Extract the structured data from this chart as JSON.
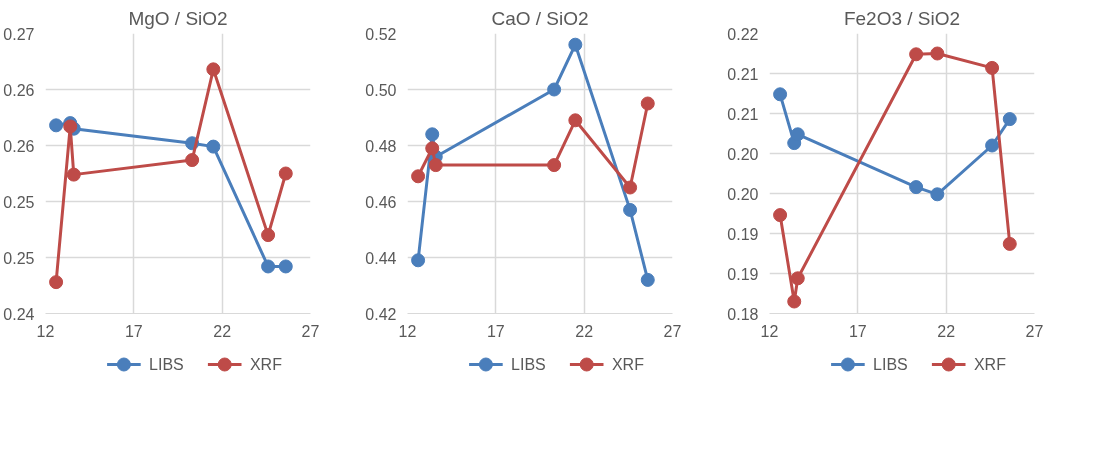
{
  "chart_data": [
    {
      "type": "line",
      "title": "MgO / SiO2",
      "x": [
        12.6,
        13.4,
        13.6,
        20.3,
        21.5,
        24.6,
        25.6
      ],
      "series": [
        {
          "name": "LIBS",
          "color": "#4a7ebb",
          "values": [
            0.2568,
            0.257,
            0.2565,
            0.2552,
            0.2549,
            0.2442,
            0.2442
          ]
        },
        {
          "name": "XRF",
          "color": "#be4b48",
          "values": [
            0.2428,
            0.2567,
            0.2524,
            0.2537,
            0.2618,
            0.247,
            0.2525
          ]
        }
      ],
      "xlim": [
        12,
        27
      ],
      "xticks": [
        12,
        17,
        22,
        27
      ],
      "ylim": [
        0.24,
        0.265
      ],
      "yticks": [
        {
          "value": 0.24,
          "label": "0.24"
        },
        {
          "value": 0.245,
          "label": "0.25"
        },
        {
          "value": 0.25,
          "label": "0.25"
        },
        {
          "value": 0.255,
          "label": "0.26"
        },
        {
          "value": 0.26,
          "label": "0.26"
        },
        {
          "value": 0.265,
          "label": "0.27"
        }
      ],
      "grid": true,
      "legend": "bottom",
      "marker": "circle",
      "line_style": "solid"
    },
    {
      "type": "line",
      "title": "CaO / SiO2",
      "x": [
        12.6,
        13.4,
        13.6,
        20.3,
        21.5,
        24.6,
        25.6
      ],
      "series": [
        {
          "name": "LIBS",
          "color": "#4a7ebb",
          "values": [
            0.439,
            0.484,
            0.476,
            0.5,
            0.516,
            0.457,
            0.432
          ]
        },
        {
          "name": "XRF",
          "color": "#be4b48",
          "values": [
            0.469,
            0.479,
            0.473,
            0.473,
            0.489,
            0.465,
            0.495
          ]
        }
      ],
      "xlim": [
        12,
        27
      ],
      "xticks": [
        12,
        17,
        22,
        27
      ],
      "ylim": [
        0.42,
        0.52
      ],
      "yticks": [
        {
          "value": 0.42,
          "label": "0.42"
        },
        {
          "value": 0.44,
          "label": "0.44"
        },
        {
          "value": 0.46,
          "label": "0.46"
        },
        {
          "value": 0.48,
          "label": "0.48"
        },
        {
          "value": 0.5,
          "label": "0.50"
        },
        {
          "value": 0.52,
          "label": "0.52"
        }
      ],
      "grid": true,
      "legend": "bottom",
      "marker": "circle",
      "line_style": "solid"
    },
    {
      "type": "line",
      "title": "Fe2O3 / SiO2",
      "x": [
        12.6,
        13.4,
        13.6,
        20.3,
        21.5,
        24.6,
        25.6
      ],
      "series": [
        {
          "name": "LIBS",
          "color": "#4a7ebb",
          "values": [
            0.2074,
            0.2013,
            0.2024,
            0.1958,
            0.1949,
            0.201,
            0.2043
          ]
        },
        {
          "name": "XRF",
          "color": "#be4b48",
          "values": [
            0.1923,
            0.1815,
            0.1844,
            0.2124,
            0.2125,
            0.2107,
            0.1887
          ]
        }
      ],
      "xlim": [
        12,
        27
      ],
      "xticks": [
        12,
        17,
        22,
        27
      ],
      "ylim": [
        0.18,
        0.215
      ],
      "yticks": [
        {
          "value": 0.18,
          "label": "0.18"
        },
        {
          "value": 0.185,
          "label": "0.19"
        },
        {
          "value": 0.19,
          "label": "0.19"
        },
        {
          "value": 0.195,
          "label": "0.20"
        },
        {
          "value": 0.2,
          "label": "0.20"
        },
        {
          "value": 0.205,
          "label": "0.21"
        },
        {
          "value": 0.21,
          "label": "0.21"
        },
        {
          "value": 0.215,
          "label": "0.22"
        }
      ],
      "grid": true,
      "legend": "bottom",
      "marker": "circle",
      "line_style": "solid"
    }
  ]
}
